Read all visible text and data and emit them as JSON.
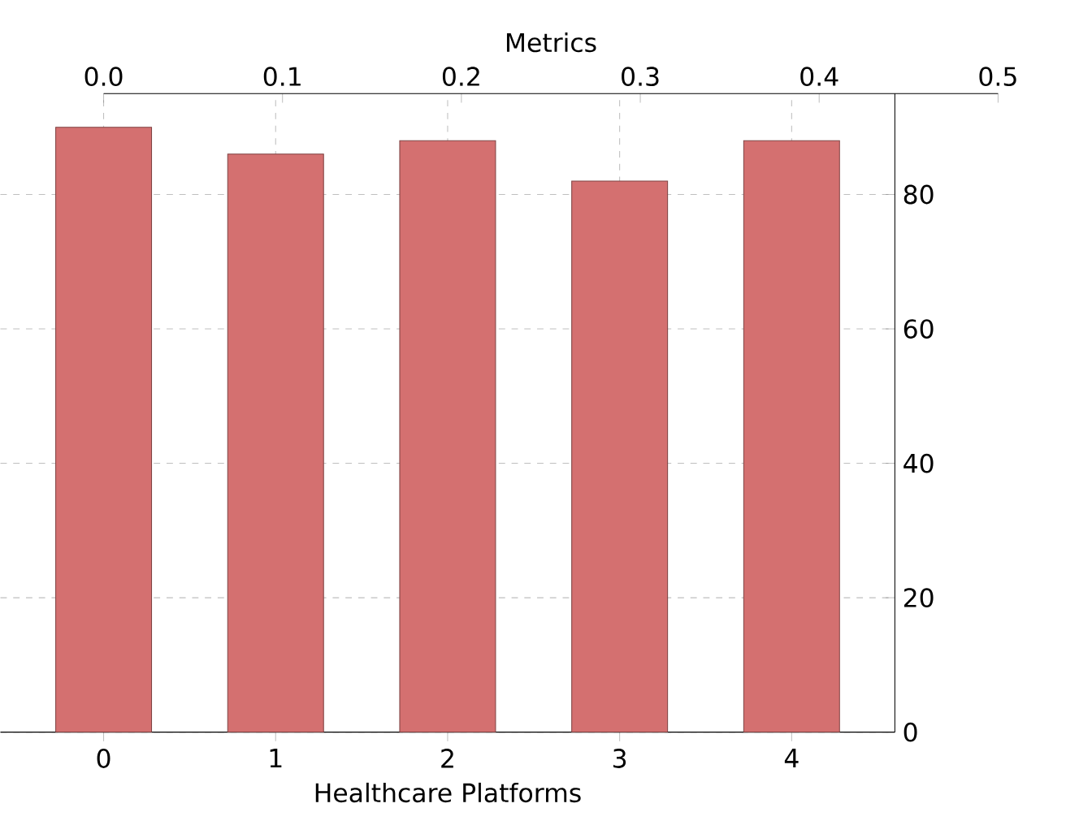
{
  "chart_data": {
    "type": "bar",
    "categories": [
      "0",
      "1",
      "2",
      "3",
      "4"
    ],
    "values": [
      90,
      86,
      88,
      82,
      88
    ],
    "color": "#d47070",
    "xlabel": "Healthcare Platforms",
    "ylim": [
      0,
      95
    ],
    "yticks": [
      0,
      20,
      40,
      60,
      80
    ],
    "x2lim": [
      0,
      0.5
    ],
    "x2ticks": [
      {
        "value": 0,
        "label": "0.0"
      },
      {
        "value": 0.1,
        "label": "0.1"
      },
      {
        "value": 0.2,
        "label": "0.2"
      },
      {
        "value": 0.3,
        "label": "0.3"
      },
      {
        "value": 0.4,
        "label": "0.4"
      },
      {
        "value": 0.5,
        "label": "0.5"
      }
    ],
    "x2label": "Metrics",
    "grid": true
  }
}
